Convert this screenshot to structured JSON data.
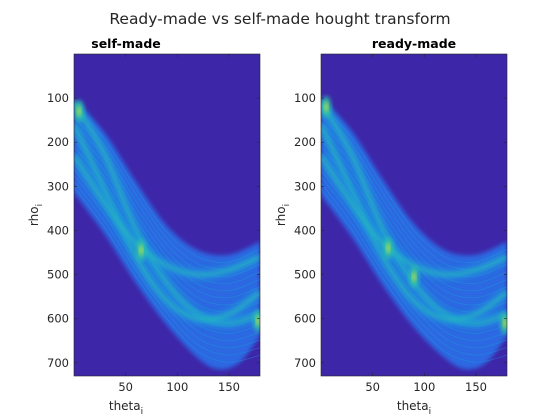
{
  "figure_title": "Ready-made vs self-made hought transform",
  "colors": {
    "background": "#3e26a8",
    "band_low": "#2c6fe8",
    "band_mid": "#1ea2dc",
    "band_high": "#2ec5a6",
    "peak": "#c8e23a",
    "axis": "#262626"
  },
  "chart_data": [
    {
      "type": "heatmap",
      "title": "self-made",
      "xlabel": "theta",
      "xlabel_subscript": "i",
      "ylabel": "rho",
      "ylabel_subscript": "i",
      "xlim": [
        0,
        180
      ],
      "ylim": [
        0,
        730
      ],
      "y_reversed": true,
      "xticks": [
        50,
        100,
        150
      ],
      "yticks": [
        100,
        200,
        300,
        400,
        500,
        600,
        700
      ],
      "band": {
        "upper_edge": [
          [
            0,
            105
          ],
          [
            30,
            180
          ],
          [
            60,
            290
          ],
          [
            90,
            390
          ],
          [
            120,
            445
          ],
          [
            150,
            455
          ],
          [
            180,
            425
          ]
        ],
        "lower_edge": [
          [
            0,
            315
          ],
          [
            30,
            410
          ],
          [
            60,
            520
          ],
          [
            90,
            615
          ],
          [
            120,
            690
          ],
          [
            140,
            715
          ],
          [
            160,
            700
          ],
          [
            180,
            640
          ]
        ],
        "ridges": [
          [
            [
              0,
              110
            ],
            [
              30,
              230
            ],
            [
              60,
              400
            ],
            [
              90,
              520
            ],
            [
              120,
              590
            ],
            [
              150,
              610
            ],
            [
              180,
              590
            ]
          ],
          [
            [
              0,
              160
            ],
            [
              30,
              310
            ],
            [
              60,
              460
            ],
            [
              90,
              560
            ],
            [
              120,
              600
            ],
            [
              150,
              590
            ],
            [
              180,
              540
            ]
          ],
          [
            [
              0,
              230
            ],
            [
              30,
              340
            ],
            [
              60,
              430
            ],
            [
              90,
              480
            ],
            [
              120,
              500
            ],
            [
              150,
              490
            ],
            [
              180,
              460
            ]
          ]
        ],
        "peaks": [
          [
            5,
            130
          ],
          [
            65,
            445
          ],
          [
            178,
            605
          ]
        ]
      }
    },
    {
      "type": "heatmap",
      "title": "ready-made",
      "xlabel": "theta",
      "xlabel_subscript": "i",
      "ylabel": "rho",
      "ylabel_subscript": "i",
      "xlim": [
        0,
        180
      ],
      "ylim": [
        0,
        730
      ],
      "y_reversed": true,
      "xticks": [
        50,
        100,
        150
      ],
      "yticks": [
        100,
        200,
        300,
        400,
        500,
        600,
        700
      ],
      "band": {
        "upper_edge": [
          [
            0,
            100
          ],
          [
            30,
            175
          ],
          [
            60,
            285
          ],
          [
            90,
            385
          ],
          [
            120,
            445
          ],
          [
            150,
            455
          ],
          [
            180,
            425
          ]
        ],
        "lower_edge": [
          [
            0,
            320
          ],
          [
            30,
            415
          ],
          [
            60,
            525
          ],
          [
            90,
            620
          ],
          [
            120,
            690
          ],
          [
            140,
            715
          ],
          [
            160,
            700
          ],
          [
            180,
            640
          ]
        ],
        "ridges": [
          [
            [
              0,
              110
            ],
            [
              30,
              230
            ],
            [
              60,
              400
            ],
            [
              90,
              520
            ],
            [
              120,
              590
            ],
            [
              150,
              610
            ],
            [
              180,
              590
            ]
          ],
          [
            [
              0,
              160
            ],
            [
              30,
              310
            ],
            [
              60,
              460
            ],
            [
              90,
              560
            ],
            [
              120,
              600
            ],
            [
              150,
              590
            ],
            [
              180,
              540
            ]
          ],
          [
            [
              0,
              230
            ],
            [
              30,
              340
            ],
            [
              60,
              430
            ],
            [
              90,
              480
            ],
            [
              120,
              500
            ],
            [
              150,
              490
            ],
            [
              180,
              460
            ]
          ]
        ],
        "peaks": [
          [
            5,
            120
          ],
          [
            65,
            440
          ],
          [
            90,
            505
          ],
          [
            178,
            610
          ]
        ]
      }
    }
  ]
}
